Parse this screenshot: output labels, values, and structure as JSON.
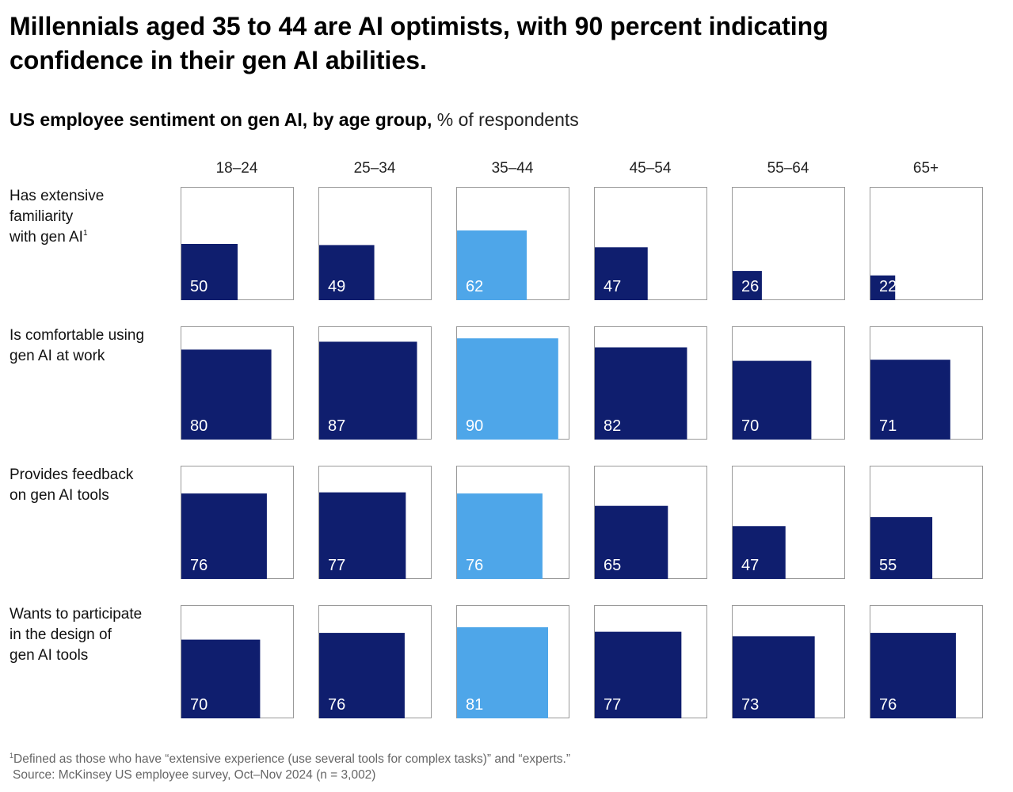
{
  "title": "Millennials aged 35 to 44 are AI optimists, with 90 percent indicating confidence in their gen AI abilities.",
  "subtitle": {
    "bold": "US employee sentiment on gen AI, by age group,",
    "unit": "% of respondents"
  },
  "footnote": {
    "marker": "1",
    "text": "Defined as those who have “extensive experience (use several tools for complex tasks)” and “experts.”",
    "source": "Source: McKinsey US employee survey, Oct–Nov 2024 (n = 3,002)"
  },
  "colors": {
    "default_bar": "#0f1e6e",
    "highlight_bar": "#4ea6e9",
    "frame": "#9a9a9a"
  },
  "chart_data": {
    "type": "bar",
    "title": "US employee sentiment on gen AI, by age group",
    "unit": "% of respondents",
    "categories": [
      "18–24",
      "25–34",
      "35–44",
      "45–54",
      "55–64",
      "65+"
    ],
    "highlight_category": "35–44",
    "ylim": [
      0,
      100
    ],
    "series": [
      {
        "name": "Has extensive familiarity with gen AI",
        "footnote_marker": "1",
        "label_lines": [
          "Has extensive",
          "familiarity",
          "with gen AI"
        ],
        "values": [
          50,
          49,
          62,
          47,
          26,
          22
        ]
      },
      {
        "name": "Is comfortable using gen AI at work",
        "label_lines": [
          "Is comfortable using",
          "gen AI at work"
        ],
        "values": [
          80,
          87,
          90,
          82,
          70,
          71
        ]
      },
      {
        "name": "Provides feedback on gen AI tools",
        "label_lines": [
          "Provides feedback",
          "on gen AI tools"
        ],
        "values": [
          76,
          77,
          76,
          65,
          47,
          55
        ]
      },
      {
        "name": "Wants to participate in the design of gen AI tools",
        "label_lines": [
          "Wants to participate",
          "in the design of",
          "gen AI tools"
        ],
        "values": [
          70,
          76,
          81,
          77,
          73,
          76
        ]
      }
    ]
  }
}
